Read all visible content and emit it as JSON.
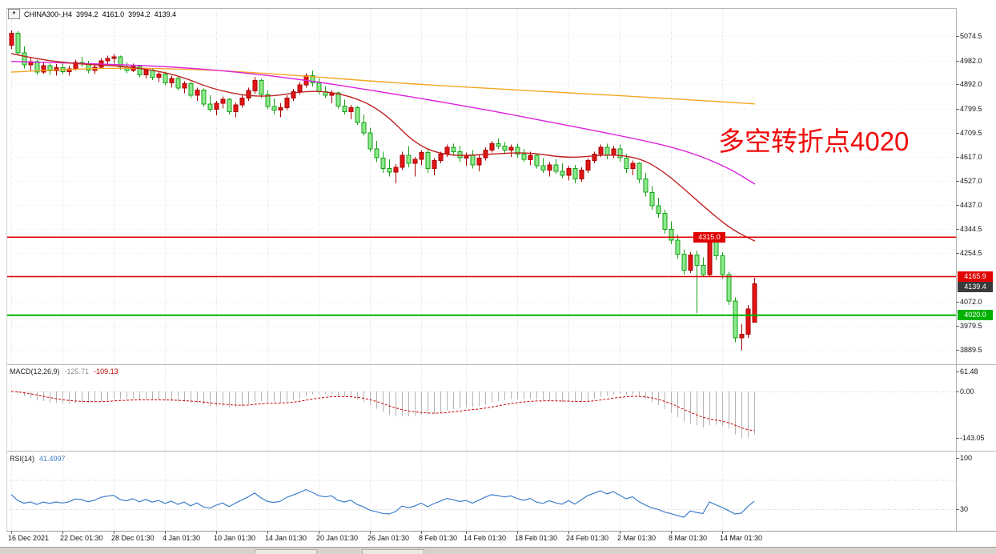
{
  "header": {
    "collapse_icon": "▼",
    "symbol": "CHINA300-,H4",
    "open": "3994.2",
    "high": "4161.0",
    "low": "3994.2",
    "close": "4139.4"
  },
  "annotation": {
    "text": "多空转折点4020",
    "color": "#f00b0b"
  },
  "chart_data": {
    "type": "candlestick",
    "symbol": "CHINA300-",
    "timeframe": "H4",
    "price_ylim": [
      3835,
      5180
    ],
    "price_axis_ticks": [
      "5074.5",
      "4982.0",
      "4892.0",
      "4799.5",
      "4709.5",
      "4617.0",
      "4527.0",
      "4437.0",
      "4344.5",
      "4254.5",
      "4072.0",
      "3979.5",
      "3889.5"
    ],
    "x_labels": [
      {
        "label": "16 Dec 2021",
        "i": 0
      },
      {
        "label": "22 Dec 01:30",
        "i": 8
      },
      {
        "label": "28 Dec 01:30",
        "i": 16
      },
      {
        "label": "4 Jan 01:30",
        "i": 24
      },
      {
        "label": "10 Jan 01:30",
        "i": 32
      },
      {
        "label": "14 Jan 01:30",
        "i": 40
      },
      {
        "label": "20 Jan 01:30",
        "i": 48
      },
      {
        "label": "26 Jan 01:30",
        "i": 56
      },
      {
        "label": "8 Feb 01:30",
        "i": 64
      },
      {
        "label": "14 Feb 01:30",
        "i": 71
      },
      {
        "label": "18 Feb 01:30",
        "i": 79
      },
      {
        "label": "24 Feb 01:30",
        "i": 87
      },
      {
        "label": "2 Mar 01:30",
        "i": 95
      },
      {
        "label": "8 Mar 01:30",
        "i": 103
      },
      {
        "label": "14 Mar 01:30",
        "i": 111
      }
    ],
    "candles": [
      [
        5040,
        5095,
        5025,
        5085
      ],
      [
        5085,
        5092,
        5000,
        5010
      ],
      [
        5010,
        5035,
        4952,
        4965
      ],
      [
        4965,
        4992,
        4940,
        4978
      ],
      [
        4978,
        4985,
        4928,
        4938
      ],
      [
        4938,
        4975,
        4932,
        4962
      ],
      [
        4962,
        4970,
        4928,
        4942
      ],
      [
        4942,
        4968,
        4925,
        4955
      ],
      [
        4955,
        4975,
        4930,
        4940
      ],
      [
        4940,
        4962,
        4924,
        4950
      ],
      [
        4950,
        4985,
        4944,
        4975
      ],
      [
        4975,
        4996,
        4958,
        4968
      ],
      [
        4968,
        4980,
        4934,
        4944
      ],
      [
        4944,
        4966,
        4930,
        4956
      ],
      [
        4956,
        4990,
        4950,
        4980
      ],
      [
        4980,
        5000,
        4964,
        4990
      ],
      [
        4990,
        5006,
        4970,
        4996
      ],
      [
        4996,
        5000,
        4948,
        4958
      ],
      [
        4958,
        4975,
        4934,
        4944
      ],
      [
        4944,
        4970,
        4938,
        4960
      ],
      [
        4960,
        4966,
        4918,
        4928
      ],
      [
        4928,
        4955,
        4914,
        4946
      ],
      [
        4946,
        4950,
        4908,
        4918
      ],
      [
        4918,
        4940,
        4900,
        4930
      ],
      [
        4930,
        4940,
        4888,
        4898
      ],
      [
        4898,
        4924,
        4880,
        4914
      ],
      [
        4914,
        4920,
        4868,
        4878
      ],
      [
        4878,
        4904,
        4858,
        4894
      ],
      [
        4894,
        4900,
        4840,
        4850
      ],
      [
        4850,
        4880,
        4830,
        4870
      ],
      [
        4870,
        4876,
        4808,
        4818
      ],
      [
        4818,
        4850,
        4788,
        4798
      ],
      [
        4798,
        4830,
        4775,
        4820
      ],
      [
        4820,
        4846,
        4800,
        4836
      ],
      [
        4836,
        4840,
        4778,
        4788
      ],
      [
        4788,
        4824,
        4768,
        4814
      ],
      [
        4814,
        4850,
        4804,
        4840
      ],
      [
        4840,
        4880,
        4830,
        4868
      ],
      [
        4868,
        4920,
        4856,
        4906
      ],
      [
        4906,
        4912,
        4840,
        4854
      ],
      [
        4854,
        4870,
        4798,
        4808
      ],
      [
        4808,
        4838,
        4780,
        4794
      ],
      [
        4794,
        4820,
        4768,
        4804
      ],
      [
        4804,
        4850,
        4794,
        4840
      ],
      [
        4840,
        4874,
        4830,
        4864
      ],
      [
        4864,
        4900,
        4854,
        4890
      ],
      [
        4890,
        4934,
        4880,
        4924
      ],
      [
        4924,
        4944,
        4884,
        4898
      ],
      [
        4898,
        4914,
        4854,
        4864
      ],
      [
        4864,
        4884,
        4840,
        4850
      ],
      [
        4850,
        4870,
        4820,
        4860
      ],
      [
        4860,
        4864,
        4800,
        4810
      ],
      [
        4810,
        4834,
        4778,
        4788
      ],
      [
        4788,
        4814,
        4760,
        4804
      ],
      [
        4804,
        4810,
        4738,
        4748
      ],
      [
        4748,
        4778,
        4698,
        4708
      ],
      [
        4708,
        4728,
        4638,
        4648
      ],
      [
        4648,
        4678,
        4598,
        4614
      ],
      [
        4614,
        4638,
        4558,
        4574
      ],
      [
        4574,
        4608,
        4544,
        4560
      ],
      [
        4560,
        4590,
        4518,
        4578
      ],
      [
        4578,
        4638,
        4568,
        4624
      ],
      [
        4624,
        4658,
        4578,
        4594
      ],
      [
        4594,
        4618,
        4544,
        4608
      ],
      [
        4608,
        4644,
        4588,
        4634
      ],
      [
        4634,
        4648,
        4558,
        4574
      ],
      [
        4574,
        4614,
        4548,
        4604
      ],
      [
        4604,
        4638,
        4594,
        4628
      ],
      [
        4628,
        4664,
        4618,
        4654
      ],
      [
        4654,
        4668,
        4624,
        4638
      ],
      [
        4638,
        4658,
        4598,
        4614
      ],
      [
        4614,
        4634,
        4584,
        4624
      ],
      [
        4624,
        4644,
        4574,
        4588
      ],
      [
        4588,
        4624,
        4564,
        4614
      ],
      [
        4614,
        4654,
        4604,
        4644
      ],
      [
        4644,
        4678,
        4634,
        4668
      ],
      [
        4668,
        4688,
        4648,
        4658
      ],
      [
        4658,
        4674,
        4628,
        4644
      ],
      [
        4644,
        4664,
        4618,
        4654
      ],
      [
        4654,
        4668,
        4614,
        4628
      ],
      [
        4628,
        4648,
        4598,
        4608
      ],
      [
        4608,
        4638,
        4588,
        4624
      ],
      [
        4624,
        4628,
        4574,
        4584
      ],
      [
        4584,
        4614,
        4558,
        4568
      ],
      [
        4568,
        4598,
        4544,
        4588
      ],
      [
        4588,
        4608,
        4554,
        4564
      ],
      [
        4564,
        4594,
        4538,
        4548
      ],
      [
        4548,
        4584,
        4528,
        4574
      ],
      [
        4574,
        4588,
        4518,
        4534
      ],
      [
        4534,
        4578,
        4524,
        4568
      ],
      [
        4568,
        4614,
        4558,
        4604
      ],
      [
        4604,
        4638,
        4594,
        4628
      ],
      [
        4628,
        4664,
        4618,
        4654
      ],
      [
        4654,
        4668,
        4608,
        4624
      ],
      [
        4624,
        4658,
        4614,
        4648
      ],
      [
        4648,
        4664,
        4598,
        4614
      ],
      [
        4614,
        4628,
        4558,
        4574
      ],
      [
        4574,
        4604,
        4548,
        4594
      ],
      [
        4594,
        4598,
        4518,
        4534
      ],
      [
        4534,
        4558,
        4468,
        4484
      ],
      [
        4484,
        4508,
        4418,
        4434
      ],
      [
        4434,
        4464,
        4388,
        4404
      ],
      [
        4404,
        4418,
        4328,
        4344
      ],
      [
        4344,
        4374,
        4288,
        4304
      ],
      [
        4304,
        4324,
        4234,
        4250
      ],
      [
        4250,
        4268,
        4174,
        4190
      ],
      [
        4190,
        4258,
        4180,
        4248
      ],
      [
        4248,
        4264,
        4028,
        4208
      ],
      [
        4208,
        4238,
        4164,
        4174
      ],
      [
        4174,
        4318,
        4168,
        4308
      ],
      [
        4308,
        4314,
        4228,
        4244
      ],
      [
        4244,
        4258,
        4158,
        4174
      ],
      [
        4174,
        4184,
        4058,
        4074
      ],
      [
        4074,
        4088,
        3918,
        3934
      ],
      [
        3934,
        3988,
        3888,
        3948
      ],
      [
        3948,
        4058,
        3934,
        4044
      ],
      [
        3994.2,
        4161.0,
        3994.2,
        4139.4
      ]
    ],
    "colors": {
      "up_fill": "#e01515",
      "up_edge": "#aa0000",
      "down_fill": "#8ce98c",
      "down_edge": "#16a016",
      "macd_hist": "#b3b3b3",
      "macd_signal": "#cc0000",
      "rsi_line": "#3d7ecb"
    },
    "moving_averages": [
      {
        "name": "ma-orange-line",
        "color": "#f5a623",
        "points": [
          [
            14,
            4938
          ],
          [
            120,
            4955
          ],
          [
            240,
            4950
          ],
          [
            360,
            4928
          ],
          [
            480,
            4900
          ],
          [
            600,
            4878
          ],
          [
            720,
            4858
          ],
          [
            840,
            4838
          ],
          [
            943,
            4818
          ]
        ]
      },
      {
        "name": "ma-magenta-line",
        "color": "#dd22dd",
        "points": [
          [
            14,
            4978
          ],
          [
            120,
            4970
          ],
          [
            240,
            4955
          ],
          [
            360,
            4918
          ],
          [
            480,
            4862
          ],
          [
            600,
            4800
          ],
          [
            700,
            4742
          ],
          [
            780,
            4695
          ],
          [
            850,
            4648
          ],
          [
            905,
            4585
          ],
          [
            943,
            4515
          ]
        ]
      },
      {
        "name": "ma-red-line",
        "color": "#c02020",
        "points": [
          [
            14,
            5008
          ],
          [
            50,
            4985
          ],
          [
            100,
            4968
          ],
          [
            160,
            4960
          ],
          [
            220,
            4930
          ],
          [
            270,
            4868
          ],
          [
            330,
            4840
          ],
          [
            390,
            4872
          ],
          [
            440,
            4848
          ],
          [
            480,
            4786
          ],
          [
            520,
            4662
          ],
          [
            560,
            4620
          ],
          [
            610,
            4628
          ],
          [
            660,
            4636
          ],
          [
            710,
            4612
          ],
          [
            760,
            4628
          ],
          [
            800,
            4614
          ],
          [
            830,
            4560
          ],
          [
            860,
            4482
          ],
          [
            890,
            4402
          ],
          [
            915,
            4342
          ],
          [
            943,
            4300
          ]
        ]
      }
    ],
    "hlines": {
      "r1": {
        "price": 4315.0,
        "label": "4315.0",
        "color": "#e00000",
        "label_x": 866
      },
      "r2": {
        "price": 4165.9,
        "label": "4165.9",
        "color": "#e00000"
      },
      "support": {
        "price": 4020.0,
        "label": "4020.0",
        "color": "#00b200",
        "width": 2
      },
      "bid": {
        "price": 4139.4,
        "label": "4139.4",
        "color": "#3a3a3a"
      }
    },
    "indicators": {
      "macd": {
        "name": "MACD(12,26,9)",
        "main_value": "-125.71",
        "signal_value": "-109.13",
        "ticks": [
          "61.48",
          "0.00",
          "-143.05"
        ],
        "ylim": [
          -179,
          81
        ]
      },
      "rsi": {
        "name": "RSI(14)",
        "value": "41.4997",
        "ticks": [
          "100",
          "30"
        ],
        "levels": [
          70,
          30
        ],
        "ylim": [
          0,
          109.3
        ]
      }
    }
  }
}
